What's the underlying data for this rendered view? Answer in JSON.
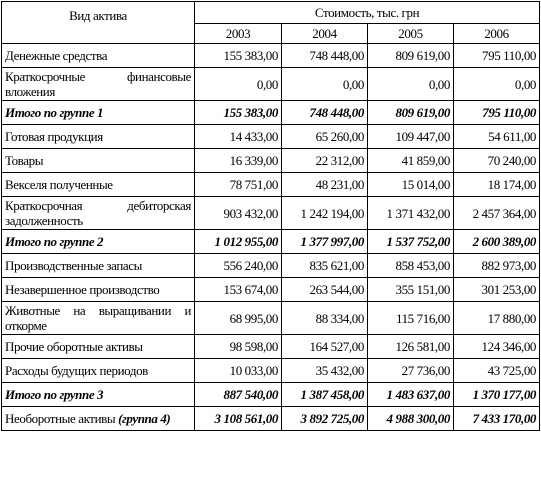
{
  "table": {
    "header": {
      "name": "Вид актива",
      "group": "Стоимость, тыс. грн",
      "years": [
        "2003",
        "2004",
        "2005",
        "2006"
      ]
    },
    "rows": [
      {
        "label": "Денежные средства",
        "values": [
          "155 383,00",
          "748 448,00",
          "809 619,00",
          "795 110,00"
        ]
      },
      {
        "label": "Краткосрочные финансовые вложения",
        "values": [
          "0,00",
          "0,00",
          "0,00",
          "0,00"
        ]
      },
      {
        "label": "Итого по группе 1",
        "total": true,
        "values": [
          "155 383,00",
          "748 448,00",
          "809 619,00",
          "795 110,00"
        ]
      },
      {
        "label": "Готовая продукция",
        "values": [
          "14 433,00",
          "65 260,00",
          "109 447,00",
          "54 611,00"
        ]
      },
      {
        "label": "Товары",
        "values": [
          "16 339,00",
          "22 312,00",
          "41 859,00",
          "70 240,00"
        ]
      },
      {
        "label": "Векселя полученные",
        "values": [
          "78 751,00",
          "48 231,00",
          "15 014,00",
          "18 174,00"
        ]
      },
      {
        "label": "Краткосрочная дебиторская задолженность",
        "values": [
          "903 432,00",
          "1 242 194,00",
          "1 371 432,00",
          "2 457 364,00"
        ]
      },
      {
        "label": "Итого по группе 2",
        "total": true,
        "values": [
          "1 012 955,00",
          "1 377 997,00",
          "1 537 752,00",
          "2 600 389,00"
        ]
      },
      {
        "label": "Производственные запасы",
        "values": [
          "556 240,00",
          "835 621,00",
          "858 453,00",
          "882 973,00"
        ]
      },
      {
        "label": "Незавершенное производство",
        "values": [
          "153 674,00",
          "263 544,00",
          "355 151,00",
          "301 253,00"
        ]
      },
      {
        "label": "Животные на выращивании и откорме",
        "values": [
          "68 995,00",
          "88 334,00",
          "115 716,00",
          "17 880,00"
        ]
      },
      {
        "label": "Прочие оборотные активы",
        "values": [
          "98 598,00",
          "164 527,00",
          "126 581,00",
          "124 346,00"
        ]
      },
      {
        "label": "Расходы будущих периодов",
        "values": [
          "10 033,00",
          "35 432,00",
          "27 736,00",
          "43 725,00"
        ]
      },
      {
        "label": "Итого по группе 3",
        "total": true,
        "values": [
          "887 540,00",
          "1 387 458,00",
          "1 483 637,00",
          "1 370 177,00"
        ]
      },
      {
        "label": "Необоротные активы",
        "label_note": "(группа 4)",
        "values": [
          "3 108 561,00",
          "3 892 725,00",
          "4 988 300,00",
          "7 433 170,00"
        ],
        "bold_values": true
      }
    ]
  }
}
